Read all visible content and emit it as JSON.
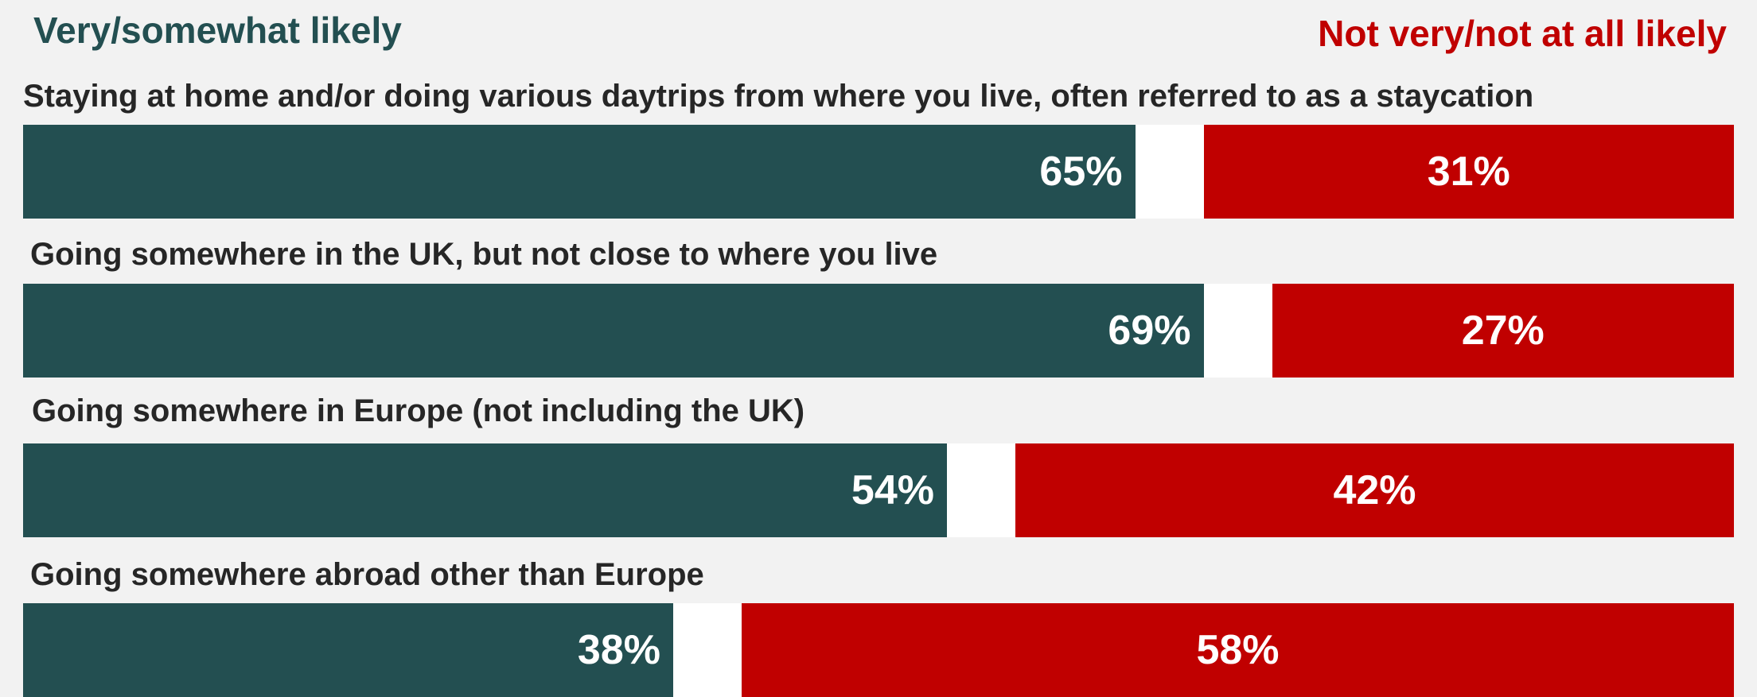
{
  "colors": {
    "background": "#f2f2f2",
    "likely": "#234f51",
    "not_likely": "#c00000",
    "gap": "#ffffff",
    "question_text": "#262626"
  },
  "legend": {
    "likely": "Very/somewhat likely",
    "not_likely": "Not very/not at all likely"
  },
  "chart_data": {
    "type": "bar",
    "orientation": "horizontal",
    "stacked": true,
    "unit": "%",
    "xlim": [
      0,
      100
    ],
    "categories": [
      "Staying at home and/or doing various daytrips from where you live, often referred to as a staycation",
      "Going somewhere in the UK, but not close to where you live",
      "Going somewhere in Europe (not including the UK)",
      "Going somewhere abroad other than Europe"
    ],
    "series": [
      {
        "name": "Very/somewhat likely",
        "values": [
          65,
          69,
          54,
          38
        ],
        "labels": [
          "65%",
          "69%",
          "54%",
          "38%"
        ]
      },
      {
        "name": "Not very/not at all likely",
        "values": [
          31,
          27,
          42,
          58
        ],
        "labels": [
          "31%",
          "27%",
          "42%",
          "58%"
        ]
      }
    ],
    "legend_position": "top",
    "grid": false
  }
}
